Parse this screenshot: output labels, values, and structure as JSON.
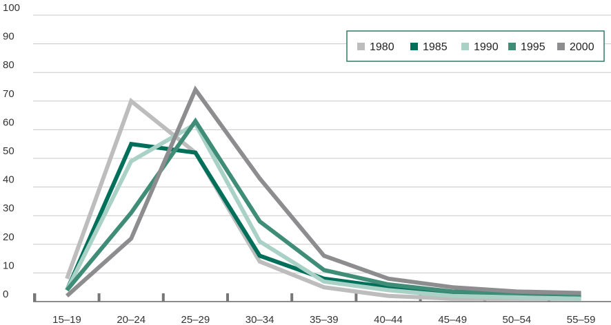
{
  "chart_data": {
    "type": "line",
    "title": "",
    "xlabel": "",
    "ylabel": "",
    "categories": [
      "15–19",
      "20–24",
      "25–29",
      "30–34",
      "35–39",
      "40–44",
      "45–49",
      "50–54",
      "55–59"
    ],
    "ylim": [
      0,
      100
    ],
    "yticks": [
      0,
      10,
      20,
      30,
      40,
      50,
      60,
      70,
      80,
      90,
      100
    ],
    "grid": true,
    "legend_position": "top-right",
    "series": [
      {
        "name": "1980",
        "color": "#bdbdbd",
        "values": [
          8,
          70,
          52,
          14,
          5,
          2,
          1,
          1,
          1
        ]
      },
      {
        "name": "1985",
        "color": "#00705a",
        "values": [
          4,
          55,
          52,
          16,
          8,
          5,
          3,
          2,
          1.5
        ]
      },
      {
        "name": "1990",
        "color": "#a9d1c6",
        "values": [
          4,
          49,
          62,
          21,
          7,
          4,
          2,
          1.5,
          1
        ]
      },
      {
        "name": "1995",
        "color": "#3f8c77",
        "values": [
          4,
          31,
          63,
          28,
          11,
          6,
          3.5,
          3,
          2.5
        ]
      },
      {
        "name": "2000",
        "color": "#8d8d8f",
        "values": [
          2,
          22,
          74,
          43,
          16,
          8,
          5,
          3.5,
          3
        ]
      }
    ]
  }
}
